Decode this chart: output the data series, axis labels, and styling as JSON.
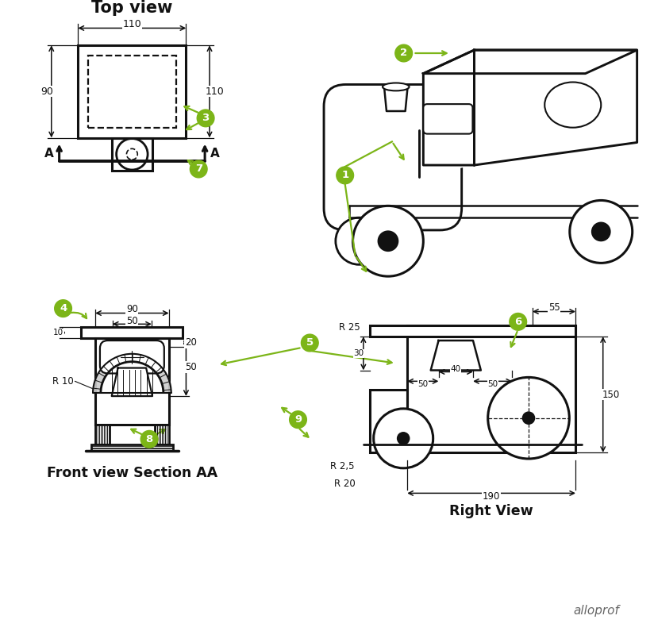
{
  "bg_color": "#ffffff",
  "line_color": "#111111",
  "green_color": "#7cb518",
  "dim_color": "#111111",
  "title_color": "#111111",
  "top_view_title": "Top view",
  "front_view_title": "Front view Section AA",
  "right_view_title": "Right View",
  "branding": "alloprof"
}
